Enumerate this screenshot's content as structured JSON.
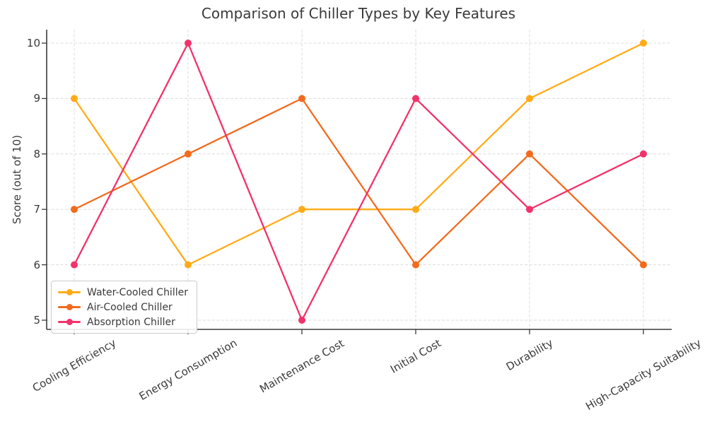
{
  "chart_data": {
    "type": "line",
    "title": "Comparison of Chiller Types by Key Features",
    "xlabel": "",
    "ylabel": "Score (out of 10)",
    "categories": [
      "Cooling Efficiency",
      "Energy Consumption",
      "Maintenance Cost",
      "Initial Cost",
      "Durability",
      "High-Capacity Suitability"
    ],
    "series": [
      {
        "name": "Water-Cooled Chiller",
        "color": "#FFAB17",
        "values": [
          9,
          6,
          7,
          7,
          9,
          10
        ]
      },
      {
        "name": "Air-Cooled Chiller",
        "color": "#F26B1D",
        "values": [
          7,
          8,
          9,
          6,
          8,
          6
        ]
      },
      {
        "name": "Absorption Chiller",
        "color": "#F2326B",
        "values": [
          6,
          10,
          5,
          9,
          7,
          8
        ]
      }
    ],
    "yticks": [
      5,
      6,
      7,
      8,
      9,
      10
    ],
    "ylim": [
      4.83,
      10.24
    ],
    "grid": true,
    "grid_style": "dashed",
    "legend_position": "lower left",
    "marker": "circle",
    "x_label_rotation_deg": 30
  },
  "colors": {
    "background": "#ffffff",
    "text": "#3a3a3a",
    "grid": "#dcdcdc",
    "spine": "#3b3b3b",
    "legend_border": "#cccccc"
  }
}
